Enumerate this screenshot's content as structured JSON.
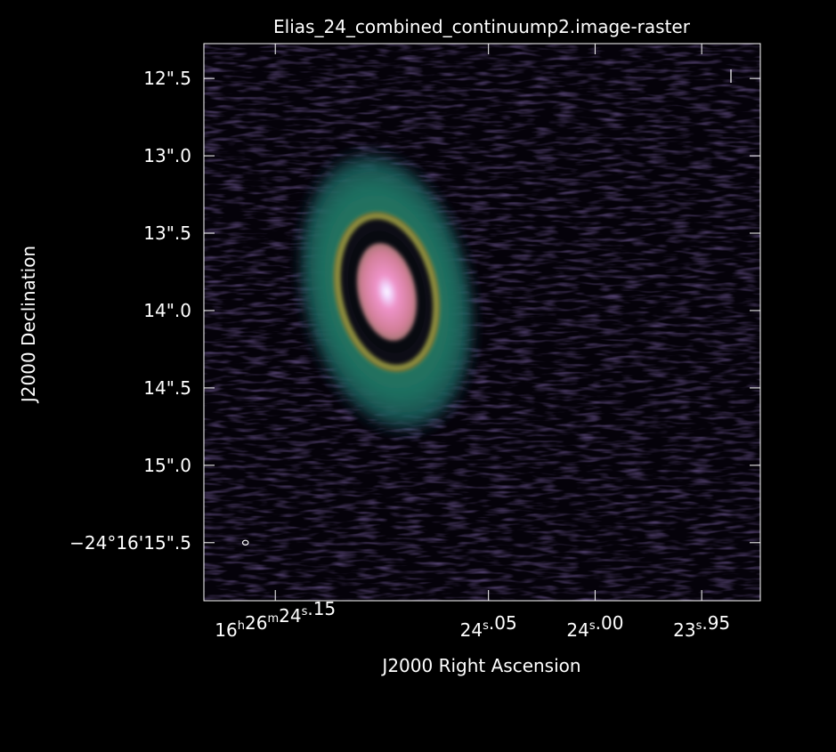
{
  "chart_data": {
    "type": "heatmap",
    "title": "Elias_24_combined_continuump2.image-raster",
    "xlabel": "J2000 Right Ascension",
    "ylabel": "J2000 Declination",
    "colormap": "cubehelix",
    "x_ticks": [
      {
        "value": 24.15,
        "label": "16h26m24s.15",
        "parts": [
          "16",
          "h",
          "26",
          "m",
          "24",
          "s",
          ".15"
        ]
      },
      {
        "value": 24.05,
        "label": "24s.05",
        "parts": [
          "24",
          "s",
          ".05"
        ]
      },
      {
        "value": 24.0,
        "label": "24s.00",
        "parts": [
          "24",
          "s",
          ".00"
        ]
      },
      {
        "value": 23.95,
        "label": "23s.95",
        "parts": [
          "23",
          "s",
          ".95"
        ]
      }
    ],
    "x_range": [
      24.1835,
      23.9225
    ],
    "y_ticks": [
      {
        "value": 12.5,
        "label": "12\".5"
      },
      {
        "value": 13.0,
        "label": "13\".0"
      },
      {
        "value": 13.5,
        "label": "13\".5"
      },
      {
        "value": 14.0,
        "label": "14\".0"
      },
      {
        "value": 14.5,
        "label": "14\".5"
      },
      {
        "value": 15.0,
        "label": "15\".0"
      },
      {
        "value": 15.5,
        "label": "−24°16'15\".5"
      }
    ],
    "y_range": [
      12.275,
      15.875
    ],
    "source": {
      "ra": 24.0977,
      "dec": 13.88,
      "components": [
        {
          "name": "central-core",
          "ra_semi": 0.0135,
          "dec_semi": 0.32,
          "peak": 1.0
        },
        {
          "name": "dark-gap",
          "ra_semi": 0.0175,
          "dec_semi": 0.4,
          "level": 0.05
        },
        {
          "name": "bright-ring",
          "ra_semi": 0.0225,
          "dec_semi": 0.5,
          "level": 0.55
        },
        {
          "name": "outer-disk-halo",
          "ra_semi": 0.037,
          "dec_semi": 0.85,
          "level": 0.33
        }
      ]
    },
    "beam_marker": {
      "ra": 24.164,
      "dec": 15.5
    }
  }
}
